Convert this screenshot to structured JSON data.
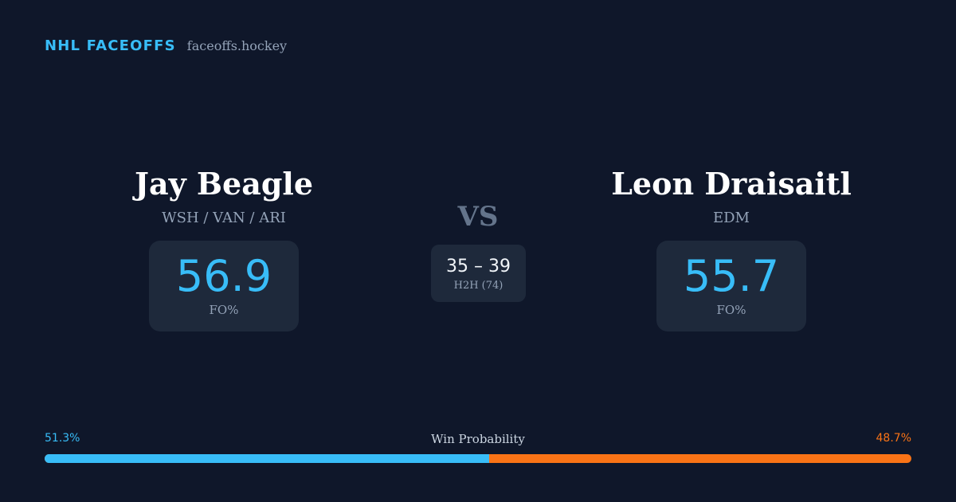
{
  "brand": {
    "name": "NHL FACEOFFS",
    "domain": "faceoffs.hockey"
  },
  "player_left": {
    "name": "Jay Beagle",
    "teams": "WSH / VAN / ARI",
    "stat_value": "56.9",
    "stat_label": "FO%"
  },
  "player_right": {
    "name": "Leon Draisaitl",
    "teams": "EDM",
    "stat_value": "55.7",
    "stat_label": "FO%"
  },
  "versus": {
    "label": "VS",
    "h2h_score": "35 – 39",
    "h2h_label": "H2H (74)"
  },
  "win_probability": {
    "title": "Win Probability",
    "left_label": "51.3%",
    "right_label": "48.7%",
    "left_fraction": 0.513,
    "right_fraction": 0.487
  },
  "colors": {
    "background": "#0f172a",
    "card": "#1e293b",
    "accent_blue": "#38bdf8",
    "accent_orange": "#f97316",
    "muted": "#94a3b8"
  }
}
